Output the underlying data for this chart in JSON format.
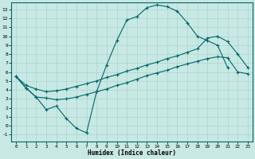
{
  "xlabel": "Humidex (Indice chaleur)",
  "xlim": [
    -0.5,
    23.5
  ],
  "ylim": [
    -1.8,
    13.8
  ],
  "xticks": [
    0,
    1,
    2,
    3,
    4,
    5,
    6,
    7,
    8,
    9,
    10,
    11,
    12,
    13,
    14,
    15,
    16,
    17,
    18,
    19,
    20,
    21,
    22,
    23
  ],
  "yticks": [
    -1,
    0,
    1,
    2,
    3,
    4,
    5,
    6,
    7,
    8,
    9,
    10,
    11,
    12,
    13
  ],
  "bg_color": "#c8e8e4",
  "grid_color": "#a8d4d0",
  "line_color": "#006666",
  "line1_x": [
    0,
    1,
    2,
    3,
    4,
    5,
    6,
    7,
    8,
    9,
    10,
    11,
    12,
    13,
    14,
    15,
    16,
    17,
    18,
    19,
    20,
    21
  ],
  "line1_y": [
    5.5,
    4.2,
    3.2,
    1.8,
    2.2,
    0.8,
    -0.3,
    -0.8,
    3.8,
    6.8,
    9.5,
    11.8,
    12.2,
    13.2,
    13.5,
    13.3,
    12.8,
    11.5,
    10.0,
    9.5,
    9.0,
    6.5
  ],
  "line2_x": [
    0,
    1,
    2,
    3,
    4,
    5,
    6,
    7,
    8,
    9,
    10,
    11,
    12,
    13,
    14,
    15,
    16,
    17,
    18,
    19,
    20,
    21,
    22,
    23
  ],
  "line2_y": [
    5.5,
    4.5,
    4.1,
    3.8,
    3.9,
    4.1,
    4.4,
    4.7,
    5.0,
    5.4,
    5.7,
    6.1,
    6.4,
    6.8,
    7.1,
    7.5,
    7.8,
    8.2,
    8.6,
    9.8,
    10.0,
    9.4,
    8.0,
    6.5
  ],
  "line3_x": [
    0,
    1,
    2,
    3,
    4,
    5,
    6,
    7,
    8,
    9,
    10,
    11,
    12,
    13,
    14,
    15,
    16,
    17,
    18,
    19,
    20,
    21,
    22,
    23
  ],
  "line3_y": [
    5.5,
    4.2,
    3.2,
    3.1,
    2.9,
    3.0,
    3.2,
    3.5,
    3.8,
    4.1,
    4.5,
    4.8,
    5.2,
    5.6,
    5.9,
    6.2,
    6.6,
    6.9,
    7.2,
    7.5,
    7.7,
    7.6,
    6.0,
    5.8
  ]
}
